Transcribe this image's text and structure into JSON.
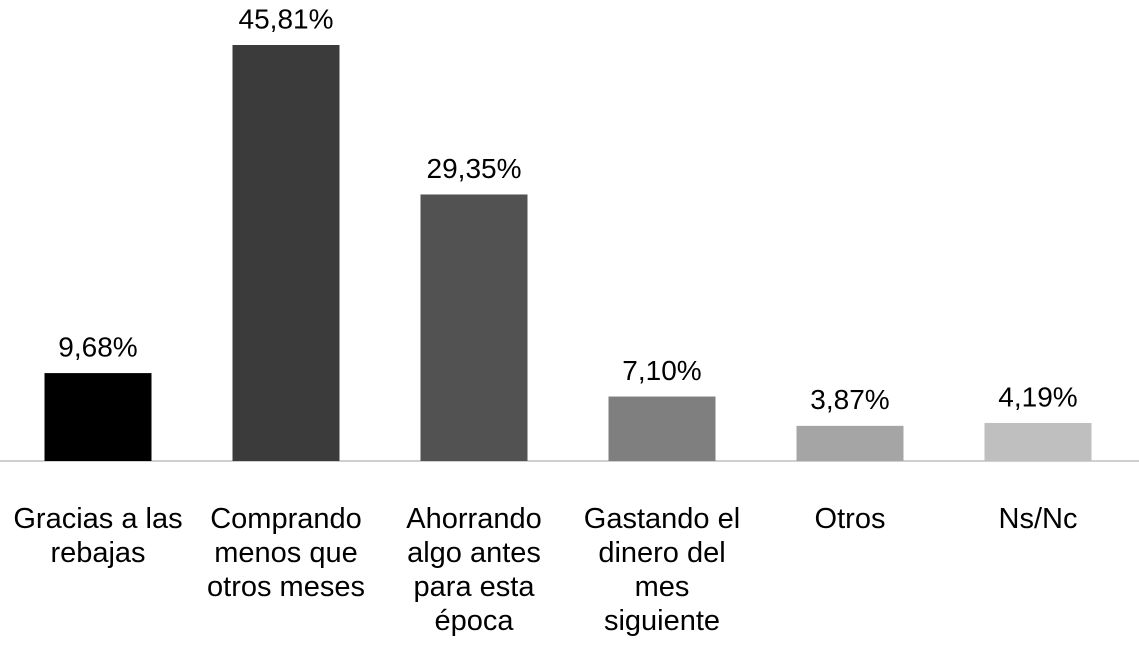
{
  "chart_data": {
    "type": "bar",
    "categories": [
      "Gracias a las rebajas",
      "Comprando menos que otros meses",
      "Ahorrando algo antes para esta época",
      "Gastando el dinero del mes siguiente",
      "Otros",
      "Ns/Nc"
    ],
    "values": [
      9.68,
      45.81,
      29.35,
      7.1,
      3.87,
      4.19
    ],
    "value_labels": [
      "9,68%",
      "45,81%",
      "29,35%",
      "7,10%",
      "3,87%",
      "4,19%"
    ],
    "colors": [
      "#000000",
      "#3b3b3b",
      "#525252",
      "#7f7f7f",
      "#a5a5a5",
      "#bfbfbf"
    ]
  }
}
